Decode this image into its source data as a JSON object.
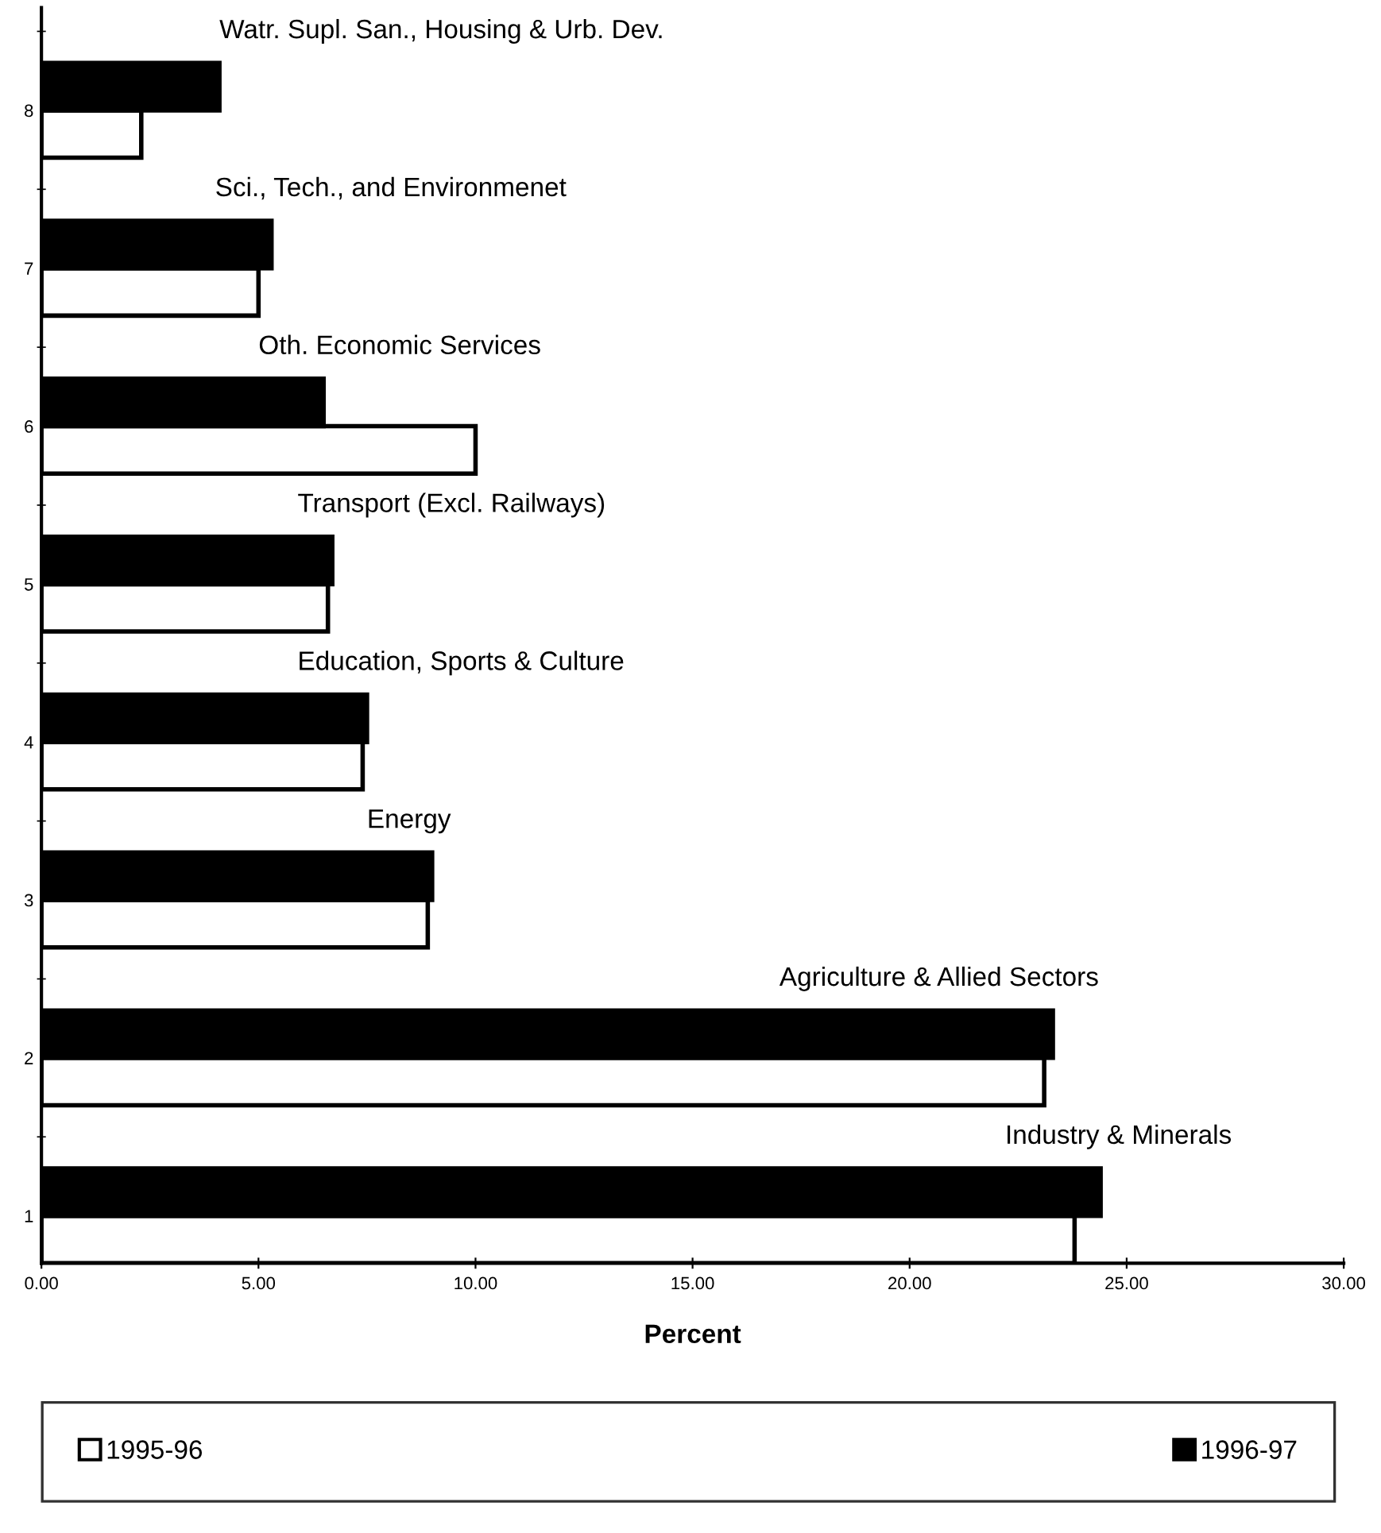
{
  "chart_data": {
    "type": "bar",
    "orientation": "horizontal",
    "xlabel": "Percent",
    "categories": [
      "8",
      "7",
      "6",
      "5",
      "4",
      "3",
      "2",
      "1"
    ],
    "series": [
      {
        "name": "1995-96",
        "color": "#ffffff",
        "values": [
          2.3,
          5.0,
          10.0,
          6.6,
          7.4,
          8.9,
          23.1,
          23.8
        ]
      },
      {
        "name": "1996-97",
        "color": "#000000",
        "values": [
          4.1,
          5.3,
          6.5,
          6.7,
          7.5,
          9.0,
          23.3,
          24.4
        ]
      }
    ],
    "xlim": [
      0,
      30
    ],
    "xticks": [
      {
        "value": 0,
        "label": "0.00"
      },
      {
        "value": 5,
        "label": "5.00"
      },
      {
        "value": 10,
        "label": "10.00"
      },
      {
        "value": 15,
        "label": "15.00"
      },
      {
        "value": 20,
        "label": "20.00"
      },
      {
        "value": 25,
        "label": "25.00"
      },
      {
        "value": 30,
        "label": "30.00"
      }
    ],
    "annotations": [
      {
        "text": "Watr. Supl. San., Housing & Urb. Dev.",
        "x": 4.1,
        "y": "8"
      },
      {
        "text": "Sci., Tech., and Environmenet",
        "x": 4.0,
        "y": "7"
      },
      {
        "text": "Oth. Economic Services",
        "x": 5.0,
        "y": "6"
      },
      {
        "text": "Transport (Excl. Railways)",
        "x": 5.9,
        "y": "5"
      },
      {
        "text": "Education, Sports & Culture",
        "x": 5.9,
        "y": "4"
      },
      {
        "text": "Energy",
        "x": 7.5,
        "y": "3"
      },
      {
        "text": "Agriculture & Allied Sectors",
        "x": 17.0,
        "y": "2"
      },
      {
        "text": "Industry & Minerals",
        "x": 22.2,
        "y": "1"
      }
    ],
    "grid": false,
    "legend": "bottom"
  }
}
